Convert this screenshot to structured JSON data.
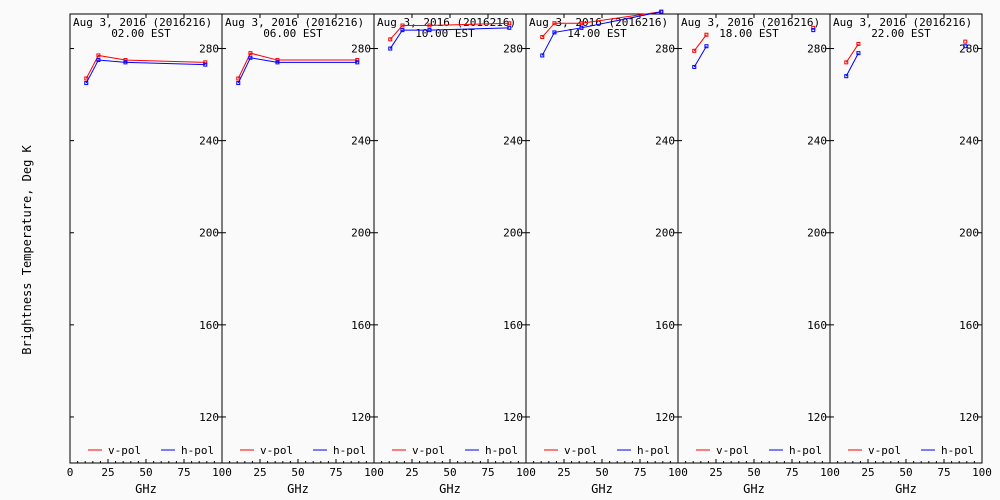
{
  "ylabel": "Brightness Temperature, Deg K",
  "chart_data": [
    {
      "type": "line",
      "title": "Aug  3, 2016 (2016216)",
      "subtitle": "02.00 EST",
      "xlabel": "GHz",
      "xlim": [
        0,
        100
      ],
      "ylim": [
        100,
        295
      ],
      "x_ticks": [
        0,
        25,
        50,
        75,
        100
      ],
      "y_ticks": [
        120,
        160,
        200,
        240,
        280
      ],
      "series": [
        {
          "name": "v-pol",
          "color": "#ff0000",
          "x": [
            10.7,
            18.7,
            36.5,
            89.0
          ],
          "y": [
            267,
            277,
            275,
            274
          ]
        },
        {
          "name": "h-pol",
          "color": "#0000ff",
          "x": [
            10.7,
            18.7,
            36.5,
            89.0
          ],
          "y": [
            265,
            275,
            274,
            273
          ]
        }
      ]
    },
    {
      "type": "line",
      "title": "Aug  3, 2016 (2016216)",
      "subtitle": "06.00 EST",
      "xlabel": "GHz",
      "xlim": [
        0,
        100
      ],
      "ylim": [
        100,
        295
      ],
      "x_ticks": [
        0,
        25,
        50,
        75,
        100
      ],
      "y_ticks": [
        120,
        160,
        200,
        240,
        280
      ],
      "series": [
        {
          "name": "v-pol",
          "color": "#ff0000",
          "x": [
            10.7,
            18.7,
            36.5,
            89.0
          ],
          "y": [
            267,
            278,
            275,
            275
          ]
        },
        {
          "name": "h-pol",
          "color": "#0000ff",
          "x": [
            10.7,
            18.7,
            36.5,
            89.0
          ],
          "y": [
            265,
            276,
            274,
            274
          ]
        }
      ]
    },
    {
      "type": "line",
      "title": "Aug  3, 2016 (2016216)",
      "subtitle": "10.00 EST",
      "xlabel": "GHz",
      "xlim": [
        0,
        100
      ],
      "ylim": [
        100,
        295
      ],
      "x_ticks": [
        0,
        25,
        50,
        75,
        100
      ],
      "y_ticks": [
        120,
        160,
        200,
        240,
        280
      ],
      "series": [
        {
          "name": "v-pol",
          "color": "#ff0000",
          "x": [
            10.7,
            18.7,
            36.5,
            89.0
          ],
          "y": [
            284,
            290,
            290,
            291
          ]
        },
        {
          "name": "h-pol",
          "color": "#0000ff",
          "x": [
            10.7,
            18.7,
            36.5,
            89.0
          ],
          "y": [
            280,
            288,
            288,
            289
          ]
        }
      ]
    },
    {
      "type": "line",
      "title": "Aug  3, 2016 (2016216)",
      "subtitle": "14.00 EST",
      "xlabel": "GHz",
      "xlim": [
        0,
        100
      ],
      "ylim": [
        100,
        295
      ],
      "x_ticks": [
        0,
        25,
        50,
        75,
        100
      ],
      "y_ticks": [
        120,
        160,
        200,
        240,
        280
      ],
      "series": [
        {
          "name": "v-pol",
          "color": "#ff0000",
          "x": [
            10.7,
            18.7,
            36.5,
            89.0
          ],
          "y": [
            285,
            291,
            291,
            296
          ]
        },
        {
          "name": "h-pol",
          "color": "#0000ff",
          "x": [
            10.7,
            18.7,
            36.5,
            89.0
          ],
          "y": [
            277,
            287,
            289,
            296
          ]
        }
      ]
    },
    {
      "type": "line",
      "title": "Aug  3, 2016 (2016216)",
      "subtitle": "18.00 EST",
      "xlabel": "GHz",
      "xlim": [
        0,
        100
      ],
      "ylim": [
        100,
        295
      ],
      "x_ticks": [
        0,
        25,
        50,
        75,
        100
      ],
      "y_ticks": [
        120,
        160,
        200,
        240,
        280
      ],
      "series": [
        {
          "name": "v-pol",
          "color": "#ff0000",
          "x": [
            10.7,
            18.7,
            null,
            89.0
          ],
          "y": [
            279,
            286,
            null,
            289
          ]
        },
        {
          "name": "h-pol",
          "color": "#0000ff",
          "x": [
            10.7,
            18.7,
            null,
            89.0
          ],
          "y": [
            272,
            281,
            null,
            288
          ]
        }
      ]
    },
    {
      "type": "line",
      "title": "Aug  3, 2016 (2016216)",
      "subtitle": "22.00 EST",
      "xlabel": "GHz",
      "xlim": [
        0,
        100
      ],
      "ylim": [
        100,
        295
      ],
      "x_ticks": [
        0,
        25,
        50,
        75,
        100
      ],
      "y_ticks": [
        120,
        160,
        200,
        240,
        280
      ],
      "series": [
        {
          "name": "v-pol",
          "color": "#ff0000",
          "x": [
            10.7,
            18.7,
            null,
            89.0
          ],
          "y": [
            274,
            282,
            null,
            283
          ]
        },
        {
          "name": "h-pol",
          "color": "#0000ff",
          "x": [
            10.7,
            18.7,
            null,
            89.0
          ],
          "y": [
            268,
            278,
            null,
            281
          ]
        }
      ]
    }
  ]
}
